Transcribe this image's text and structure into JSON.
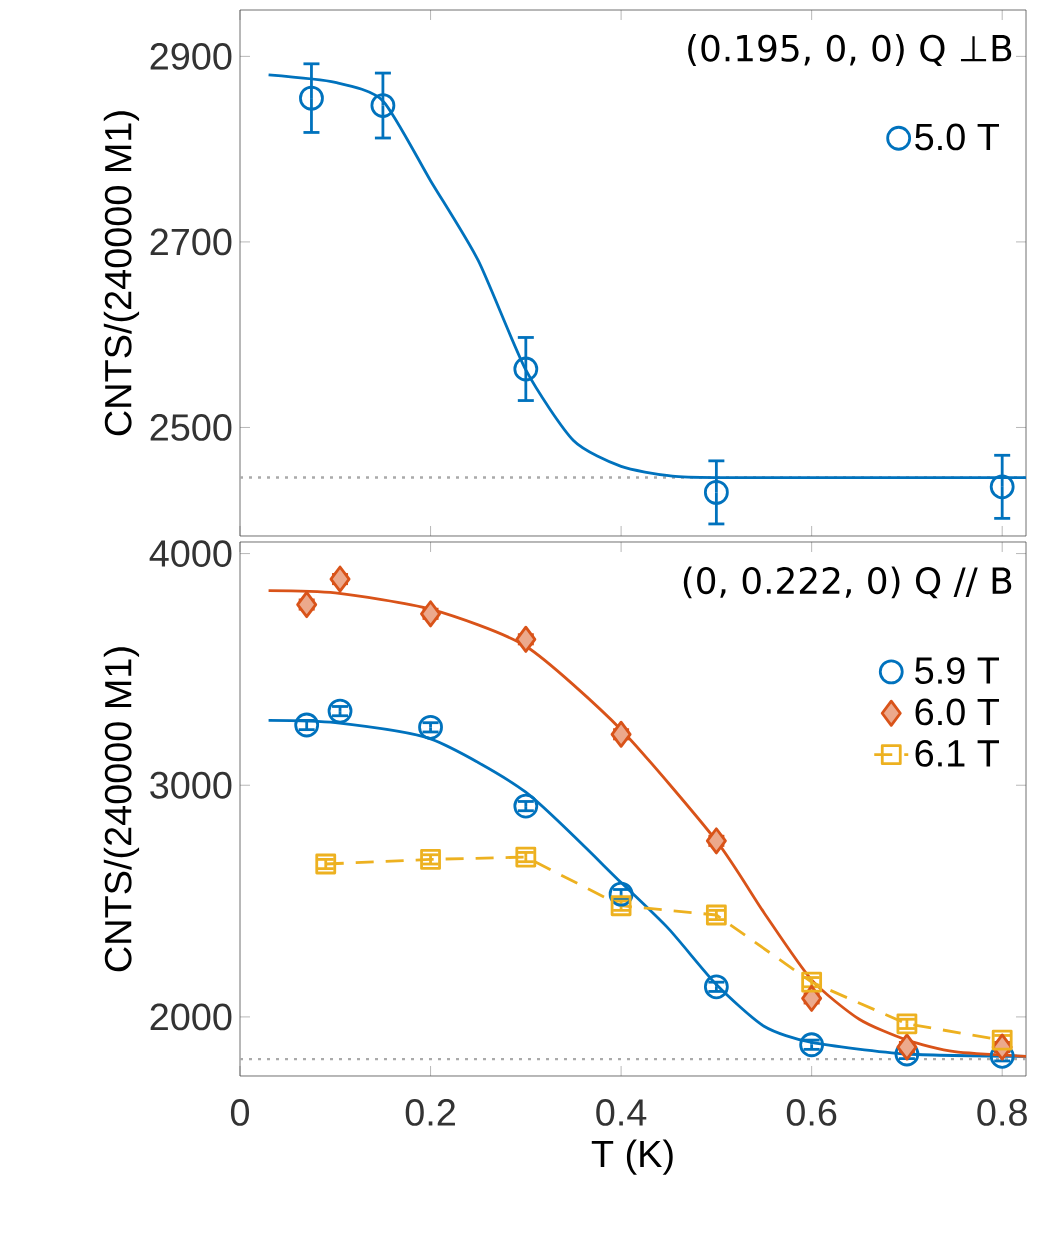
{
  "chart_data": [
    {
      "type": "line",
      "xlim": [
        0,
        0.825
      ],
      "xticks": [
        0,
        0.2,
        0.4,
        0.6,
        0.8
      ],
      "ylim": [
        2383,
        2950
      ],
      "yticks": [
        2500,
        2700,
        2900
      ],
      "ylabel": "CNTS/(240000 M1)",
      "tick_labels": "y",
      "legend": "top right",
      "annotations": [
        "(0.195, 0, 0) Q ⊥B"
      ],
      "ref_lines": [
        {
          "axis": "y",
          "value": 2446,
          "color": "#aaaaaa",
          "line_style": "dotted"
        }
      ],
      "series": [
        {
          "color": "#0072bd",
          "marker": "none",
          "line_style": "solid",
          "x": [
            0.03,
            0.1,
            0.15,
            0.2,
            0.25,
            0.3,
            0.35,
            0.4,
            0.45,
            0.5,
            0.825
          ],
          "values": [
            2880,
            2872,
            2852,
            2766,
            2680,
            2562,
            2486,
            2458,
            2448,
            2446,
            2446
          ]
        },
        {
          "type": "scatter",
          "name": "5.0 T",
          "color": "#0072bd",
          "marker": "circle",
          "x": [
            0.075,
            0.15,
            0.3,
            0.5,
            0.8
          ],
          "values": [
            2855,
            2847,
            2563,
            2430,
            2436
          ],
          "errors": [
            37,
            35,
            34,
            34,
            34
          ]
        }
      ]
    },
    {
      "type": "line",
      "xlim": [
        0,
        0.825
      ],
      "xticks": [
        0,
        0.2,
        0.4,
        0.6,
        0.8
      ],
      "ylim": [
        1745,
        4050
      ],
      "yticks": [
        2000,
        3000,
        4000
      ],
      "xlabel": "T (K)",
      "ylabel": "CNTS/(240000 M1)",
      "legend": "top right",
      "annotations": [
        "(0, 0.222, 0) Q // B"
      ],
      "ref_lines": [
        {
          "axis": "y",
          "value": 1818,
          "color": "#aaaaaa",
          "line_style": "dotted"
        }
      ],
      "series": [
        {
          "color": "#0072bd",
          "marker": "none",
          "line_style": "solid",
          "x": [
            0.03,
            0.1,
            0.2,
            0.3,
            0.4,
            0.45,
            0.5,
            0.55,
            0.6,
            0.7,
            0.825
          ],
          "values": [
            3280,
            3270,
            3200,
            2970,
            2580,
            2380,
            2140,
            1960,
            1890,
            1840,
            1830
          ]
        },
        {
          "color": "#d95319",
          "marker": "none",
          "line_style": "solid",
          "x": [
            0.03,
            0.1,
            0.2,
            0.3,
            0.4,
            0.5,
            0.55,
            0.6,
            0.65,
            0.7,
            0.75,
            0.825
          ],
          "values": [
            3840,
            3830,
            3760,
            3600,
            3240,
            2760,
            2450,
            2160,
            1990,
            1900,
            1850,
            1830
          ]
        },
        {
          "type": "scatter",
          "name": "5.9 T",
          "color": "#0072bd",
          "marker": "circle",
          "x": [
            0.07,
            0.105,
            0.2,
            0.3,
            0.4,
            0.5,
            0.6,
            0.7,
            0.8
          ],
          "values": [
            3260,
            3320,
            3250,
            2910,
            2530,
            2130,
            1880,
            1840,
            1830
          ],
          "errors": [
            20,
            20,
            20,
            20,
            20,
            20,
            20,
            20,
            20
          ]
        },
        {
          "type": "scatter",
          "name": "6.0 T",
          "color": "#d95319",
          "marker": "diamond",
          "x": [
            0.07,
            0.105,
            0.2,
            0.3,
            0.4,
            0.5,
            0.6,
            0.7,
            0.8
          ],
          "values": [
            3780,
            3890,
            3740,
            3630,
            3220,
            2760,
            2080,
            1870,
            1870
          ],
          "errors": [
            20,
            20,
            20,
            20,
            20,
            20,
            20,
            20,
            20
          ]
        },
        {
          "name": "6.1 T",
          "color": "#edb120",
          "marker": "square",
          "line_style": "dashed",
          "x": [
            0.09,
            0.2,
            0.3,
            0.4,
            0.5,
            0.6,
            0.7,
            0.8
          ],
          "values": [
            2660,
            2680,
            2690,
            2480,
            2440,
            2150,
            1970,
            1900
          ],
          "errors": [
            20,
            20,
            20,
            20,
            20,
            20,
            20,
            20
          ]
        }
      ]
    }
  ]
}
